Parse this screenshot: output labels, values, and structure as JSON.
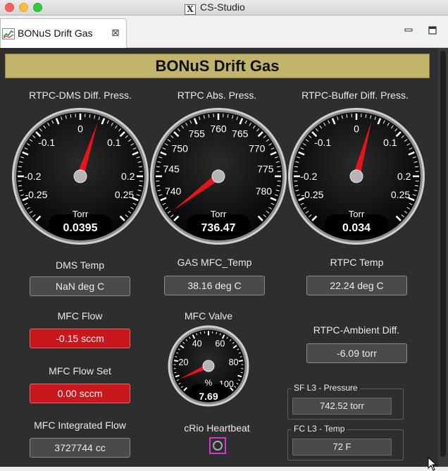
{
  "window": {
    "title": "CS-Studio",
    "app_icon": "x11-icon"
  },
  "tab": {
    "label": "BONuS Drift Gas",
    "icon": "chart-icon",
    "close_icon": "close-icon"
  },
  "banner": {
    "title": "BONuS Drift Gas",
    "color": "#c2b46a"
  },
  "gauges": {
    "dms": {
      "title": "RTPC-DMS Diff. Press.",
      "unit": "Torr",
      "value_text": "0.0395",
      "value": 0.0395,
      "min": -0.3,
      "max": 0.3,
      "ticks": [
        "-0.25",
        "-0.2",
        "-0.1",
        "0",
        "0.1",
        "0.2",
        "0.25"
      ]
    },
    "abs": {
      "title": "RTPC Abs. Press.",
      "unit": "Torr",
      "value_text": "736.47",
      "value": 736.47,
      "min": 735,
      "max": 785,
      "ticks": [
        "740",
        "745",
        "750",
        "755",
        "760",
        "765",
        "770",
        "775",
        "780"
      ]
    },
    "buffer": {
      "title": "RTPC-Buffer Diff. Press.",
      "unit": "Torr",
      "value_text": "0.034",
      "value": 0.034,
      "min": -0.3,
      "max": 0.3,
      "ticks": [
        "-0.25",
        "-0.2",
        "-0.1",
        "0",
        "0.1",
        "0.2",
        "0.25"
      ]
    },
    "valve": {
      "title": "MFC Valve",
      "unit": "%",
      "value_text": "7.69",
      "value": 7.69,
      "min": 0,
      "max": 100,
      "ticks": [
        "20",
        "40",
        "60",
        "80",
        "100"
      ]
    }
  },
  "readouts": {
    "dms_temp": {
      "label": "DMS Temp",
      "value": "NaN deg C"
    },
    "gas_mfc_temp": {
      "label": "GAS MFC_Temp",
      "value": "38.16 deg C"
    },
    "rtpc_temp": {
      "label": "RTPC Temp",
      "value": "22.24 deg C"
    },
    "mfc_flow": {
      "label": "MFC Flow",
      "value": "-0.15 sccm"
    },
    "mfc_flow_set": {
      "label": "MFC Flow Set",
      "value": "0.00 sccm"
    },
    "mfc_integrated": {
      "label": "MFC Integrated Flow",
      "value": "3727744 cc"
    },
    "rtpc_ambient": {
      "label": "RTPC-Ambient Diff.",
      "value": "-6.09 torr"
    }
  },
  "heartbeat": {
    "label": "cRio Heartbeat"
  },
  "groups": {
    "sf_pressure": {
      "title": "SF L3 - Pressure",
      "value": "742.52 torr"
    },
    "fc_temp": {
      "title": "FC L3 - Temp",
      "value": "72 F"
    }
  },
  "colors": {
    "needle": "#e8141c",
    "alarm": "#c8171d",
    "panel": "#2e2e2e"
  }
}
